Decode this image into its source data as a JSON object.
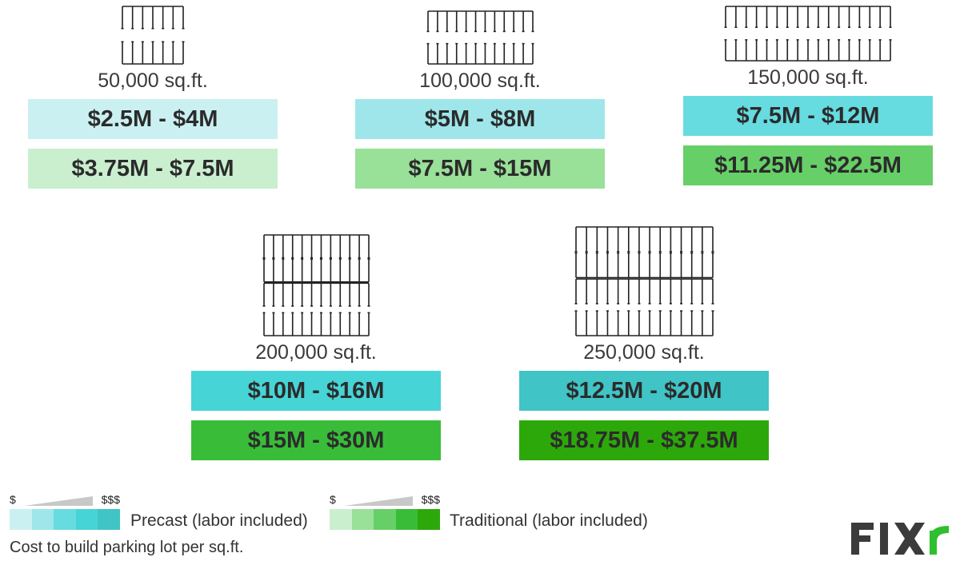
{
  "lots": [
    {
      "area": "50,000 sq.ft.",
      "precast": "$2.5M - $4M",
      "traditional": "$3.75M - $7.5M",
      "precast_color": "#cbf0f2",
      "traditional_color": "#c9efcf",
      "rows": 2,
      "cols": 6
    },
    {
      "area": "100,000 sq.ft.",
      "precast": "$5M - $8M",
      "traditional": "$7.5M - $15M",
      "precast_color": "#9ee6e9",
      "traditional_color": "#99e099",
      "rows": 2,
      "cols": 11
    },
    {
      "area": "150,000 sq.ft.",
      "precast": "$7.5M - $12M",
      "traditional": "$11.25M - $22.5M",
      "precast_color": "#66dbe0",
      "traditional_color": "#67cf67",
      "rows": 2,
      "cols": 16
    },
    {
      "area": "200,000 sq.ft.",
      "precast": "$10M - $16M",
      "traditional": "$15M - $30M",
      "precast_color": "#47d4d6",
      "traditional_color": "#39bd39",
      "rows": 4,
      "cols": 11
    },
    {
      "area": "250,000 sq.ft.",
      "precast": "$12.5M - $20M",
      "traditional": "$18.75M - $37.5M",
      "precast_color": "#40c4c6",
      "traditional_color": "#2da80b",
      "rows": 4,
      "cols": 13
    }
  ],
  "legend": {
    "precast": {
      "low": "$",
      "high": "$$$",
      "label": "Precast (labor included)",
      "colors": [
        "#cbf0f2",
        "#9ee6e9",
        "#66dbe0",
        "#47d4d6",
        "#40c4c6"
      ]
    },
    "traditional": {
      "low": "$",
      "high": "$$$",
      "label": "Traditional (labor included)",
      "colors": [
        "#c9efcf",
        "#99e099",
        "#67cf67",
        "#39bd39",
        "#2da80b"
      ]
    }
  },
  "caption": "Cost to build parking lot per sq.ft.",
  "logo": {
    "text": "FIXR",
    "color": "#3b3b3b",
    "accent": "#2fbf2f"
  }
}
